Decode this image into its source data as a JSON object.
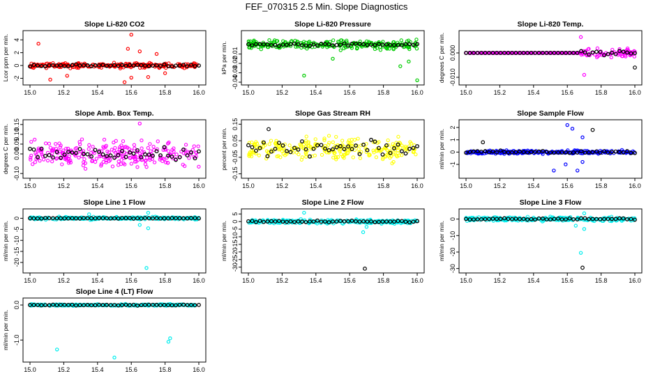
{
  "page_title": "FEF_070315  2.5 Min. Slope Diagnostics",
  "colors": {
    "ref": "#000000",
    "red": "#ff0000",
    "green": "#00cc00",
    "magenta": "#ff00ff",
    "yellow": "#ffff00",
    "blue": "#0000ff",
    "cyan": "#00eeee"
  },
  "chart_data": [
    {
      "id": "p1",
      "type": "scatter",
      "title": "Slope Li-820 CO2",
      "ylabel": "Lcor ppm per min.",
      "xlim": [
        15.0,
        16.0
      ],
      "ylim": [
        -2.6,
        5.0
      ],
      "xticks": [
        "15.0",
        "15.2",
        "15.4",
        "15.6",
        "15.8",
        "16.0"
      ],
      "yticks": [
        "-2",
        "0",
        "2",
        "4"
      ],
      "series": [
        {
          "color": "red",
          "spread": 0.55,
          "outliers": [
            [
              15.05,
              3.4
            ],
            [
              15.12,
              -2.2
            ],
            [
              15.22,
              -1.6
            ],
            [
              15.56,
              -2.6
            ],
            [
              15.58,
              2.6
            ],
            [
              15.6,
              4.8
            ],
            [
              15.6,
              -1.9
            ],
            [
              15.65,
              2.2
            ],
            [
              15.7,
              -1.8
            ],
            [
              15.75,
              1.8
            ],
            [
              15.8,
              -1.2
            ]
          ]
        },
        {
          "color": "ref",
          "spread": 0.2,
          "outliers": []
        }
      ]
    },
    {
      "id": "p2",
      "type": "scatter",
      "title": "Slope Li-820 Pressure",
      "ylabel": "kPa per min.",
      "xlim": [
        15.0,
        16.0
      ],
      "ylim": [
        -0.04,
        0.012
      ],
      "xticks": [
        "15.0",
        "15.2",
        "15.4",
        "15.6",
        "15.8",
        "16.0"
      ],
      "yticks": [
        "-0.04",
        "-0.03",
        "-0.02",
        "-0.01"
      ],
      "series": [
        {
          "color": "green",
          "spread": 0.007,
          "outliers": [
            [
              15.33,
              -0.033
            ],
            [
              16.0,
              -0.038
            ],
            [
              15.9,
              -0.023
            ],
            [
              15.95,
              -0.018
            ],
            [
              15.5,
              -0.015
            ]
          ]
        },
        {
          "color": "ref",
          "spread": 0.002,
          "outliers": []
        }
      ]
    },
    {
      "id": "p3",
      "type": "scatter",
      "title": "Slope Li-820 Temp.",
      "ylabel": "degrees C per min.",
      "xlim": [
        15.0,
        16.0
      ],
      "ylim": [
        -0.012,
        0.008
      ],
      "xticks": [
        "15.0",
        "15.2",
        "15.4",
        "15.6",
        "15.8",
        "16.0"
      ],
      "yticks": [
        "-0.010",
        "0.000"
      ],
      "series": [
        {
          "color": "magenta",
          "spread": 0.0,
          "tail": [
            15.68,
            0.0025
          ],
          "outliers": [
            [
              15.7,
              -0.009
            ],
            [
              15.68,
              0.0065
            ]
          ]
        },
        {
          "color": "ref",
          "spread": 0.0,
          "tail": [
            15.68,
            0.0012
          ],
          "outliers": [
            [
              16.0,
              -0.006
            ]
          ]
        }
      ]
    },
    {
      "id": "p4",
      "type": "scatter",
      "title": "Slope Amb. Box Temp.",
      "ylabel": "degrees C per min.",
      "xlim": [
        15.0,
        16.0
      ],
      "ylim": [
        -0.11,
        0.16
      ],
      "xticks": [
        "15.0",
        "15.2",
        "15.4",
        "15.6",
        "15.8",
        "16.0"
      ],
      "yticks": [
        "-0.10",
        "0.00",
        "0.05",
        "0.10",
        "0.15"
      ],
      "series": [
        {
          "color": "magenta",
          "spread": 0.09,
          "outliers": [
            [
              15.65,
              0.155
            ]
          ]
        },
        {
          "color": "ref",
          "spread": 0.05,
          "outliers": []
        }
      ]
    },
    {
      "id": "p5",
      "type": "scatter",
      "title": "Slope Gas Stream RH",
      "ylabel": "percent per min.",
      "xlim": [
        15.0,
        16.0
      ],
      "ylim": [
        -0.16,
        0.16
      ],
      "xticks": [
        "15.0",
        "15.2",
        "15.4",
        "15.6",
        "15.8",
        "16.0"
      ],
      "yticks": [
        "-0.15",
        "-0.05",
        "0.05",
        "0.15"
      ],
      "series": [
        {
          "color": "yellow",
          "spread": 0.1,
          "outliers": []
        },
        {
          "color": "ref",
          "spread": 0.06,
          "outliers": [
            [
              15.12,
              0.12
            ]
          ]
        }
      ]
    },
    {
      "id": "p6",
      "type": "scatter",
      "title": "Slope Sample Flow",
      "ylabel": "ml/min per min.",
      "xlim": [
        15.0,
        16.0
      ],
      "ylim": [
        -1.9,
        2.4
      ],
      "xticks": [
        "15.0",
        "15.2",
        "15.4",
        "15.6",
        "15.8",
        "16.0"
      ],
      "yticks": [
        "-1",
        "0",
        "1",
        "2"
      ],
      "series": [
        {
          "color": "blue",
          "spread": 0.2,
          "outliers": [
            [
              15.6,
              2.2
            ],
            [
              15.63,
              1.9
            ],
            [
              15.66,
              -1.5
            ],
            [
              15.69,
              1.2
            ],
            [
              15.59,
              -1.0
            ],
            [
              15.69,
              -0.8
            ],
            [
              15.52,
              -1.5
            ]
          ]
        },
        {
          "color": "ref",
          "spread": 0.15,
          "outliers": [
            [
              15.75,
              1.8
            ],
            [
              15.1,
              0.8
            ]
          ]
        }
      ]
    },
    {
      "id": "p7",
      "type": "scatter",
      "title": "Slope Line 1 Flow",
      "ylabel": "ml/min per min.",
      "xlim": [
        15.0,
        16.0
      ],
      "ylim": [
        -23.5,
        3.0
      ],
      "xticks": [
        "15.0",
        "15.2",
        "15.4",
        "15.6",
        "15.8",
        "16.0"
      ],
      "yticks": [
        "-20",
        "-15",
        "-10",
        "-5",
        "0"
      ],
      "series": [
        {
          "color": "cyan",
          "spread": 0.9,
          "outliers": [
            [
              15.69,
              -22.5
            ],
            [
              15.7,
              -4.5
            ],
            [
              15.7,
              2.5
            ],
            [
              15.65,
              -3.0
            ],
            [
              15.35,
              1.8
            ]
          ]
        },
        {
          "color": "ref",
          "spread": 0.2,
          "outliers": []
        }
      ]
    },
    {
      "id": "p8",
      "type": "scatter",
      "title": "Slope Line 2 Flow",
      "ylabel": "ml/min per min.",
      "xlim": [
        15.0,
        16.0
      ],
      "ylim": [
        -32,
        6.5
      ],
      "xticks": [
        "15.0",
        "15.2",
        "15.4",
        "15.6",
        "15.8",
        "16.0"
      ],
      "yticks": [
        "-30",
        "-25",
        "-20",
        "-15",
        "-10",
        "-5",
        "0",
        "5"
      ],
      "series": [
        {
          "color": "cyan",
          "spread": 1.8,
          "outliers": [
            [
              15.68,
              -7.0
            ],
            [
              15.7,
              -3.5
            ],
            [
              15.33,
              5.8
            ]
          ]
        },
        {
          "color": "ref",
          "spread": 0.9,
          "outliers": [
            [
              15.69,
              -31
            ]
          ]
        }
      ]
    },
    {
      "id": "p9",
      "type": "scatter",
      "title": "Slope Line 3 Flow",
      "ylabel": "ml/min per min.",
      "xlim": [
        15.0,
        16.0
      ],
      "ylim": [
        -31,
        4.5
      ],
      "xticks": [
        "15.0",
        "15.2",
        "15.4",
        "15.6",
        "15.8",
        "16.0"
      ],
      "yticks": [
        "-30",
        "-20",
        "-10",
        "0"
      ],
      "series": [
        {
          "color": "cyan",
          "spread": 1.8,
          "outliers": [
            [
              15.68,
              -20.5
            ],
            [
              15.7,
              -6.0
            ],
            [
              15.7,
              3.5
            ],
            [
              15.65,
              -4.0
            ]
          ]
        },
        {
          "color": "ref",
          "spread": 0.8,
          "outliers": [
            [
              15.69,
              -29.5
            ]
          ]
        }
      ]
    },
    {
      "id": "p10",
      "type": "scatter",
      "title": "Slope Line 4 (LT) Flow",
      "ylabel": "ml/min per min.",
      "xlim": [
        15.0,
        16.0
      ],
      "ylim": [
        -1.55,
        0.12
      ],
      "xticks": [
        "15.0",
        "15.2",
        "15.4",
        "15.6",
        "15.8",
        "16.0"
      ],
      "yticks": [
        "-1.0",
        "0.0"
      ],
      "series": [
        {
          "color": "cyan",
          "spread": 0.035,
          "outliers": [
            [
              15.16,
              -1.27
            ],
            [
              15.5,
              -1.5
            ],
            [
              15.83,
              -0.95
            ],
            [
              15.82,
              -1.05
            ]
          ]
        },
        {
          "color": "ref",
          "spread": 0.02,
          "outliers": []
        }
      ]
    }
  ]
}
